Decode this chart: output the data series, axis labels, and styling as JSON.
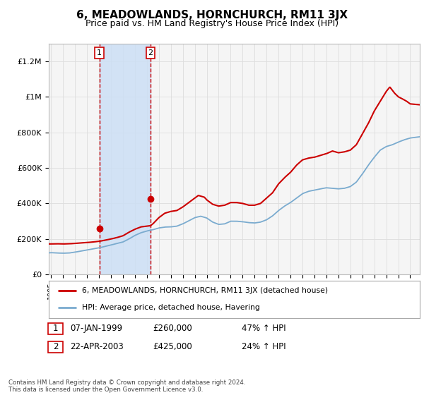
{
  "title": "6, MEADOWLANDS, HORNCHURCH, RM11 3JX",
  "subtitle": "Price paid vs. HM Land Registry's House Price Index (HPI)",
  "title_fontsize": 11,
  "subtitle_fontsize": 9,
  "ylabel_ticks": [
    "£0",
    "£200K",
    "£400K",
    "£600K",
    "£800K",
    "£1M",
    "£1.2M"
  ],
  "ytick_vals": [
    0,
    200000,
    400000,
    600000,
    800000,
    1000000,
    1200000
  ],
  "ylim": [
    0,
    1300000
  ],
  "xlim_start": 1994.8,
  "xlim_end": 2025.8,
  "sale1_x": 1999.03,
  "sale1_y": 260000,
  "sale1_label": "1",
  "sale2_x": 2003.31,
  "sale2_y": 425000,
  "sale2_label": "2",
  "vline1_x": 1999.03,
  "vline2_x": 2003.31,
  "shade_xmin": 1999.03,
  "shade_xmax": 2003.31,
  "price_line_color": "#cc0000",
  "hpi_line_color": "#7aabcf",
  "vline_color": "#cc0000",
  "shade_color": "#ccdff5",
  "marker_color": "#cc0000",
  "legend_label_price": "6, MEADOWLANDS, HORNCHURCH, RM11 3JX (detached house)",
  "legend_label_hpi": "HPI: Average price, detached house, Havering",
  "annotation1_date": "07-JAN-1999",
  "annotation1_price": "£260,000",
  "annotation1_hpi": "47% ↑ HPI",
  "annotation2_date": "22-APR-2003",
  "annotation2_price": "£425,000",
  "annotation2_hpi": "24% ↑ HPI",
  "footnote": "Contains HM Land Registry data © Crown copyright and database right 2024.\nThis data is licensed under the Open Government Licence v3.0.",
  "background_color": "#ffffff",
  "plot_bg_color": "#f5f5f5",
  "grid_color": "#dddddd"
}
